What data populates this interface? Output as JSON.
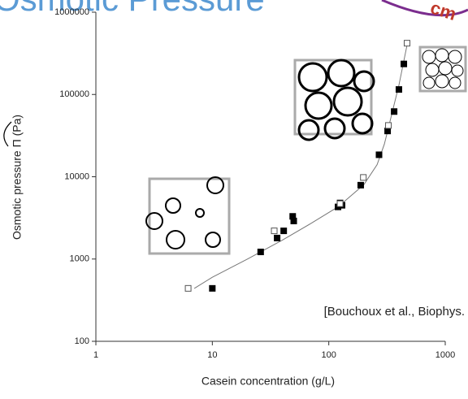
{
  "chart_data": {
    "type": "scatter",
    "title": "Osmotic Pressure",
    "corner_note": "cm",
    "annotation": "[Bouchoux et al., Biophys.",
    "xlabel": "Casein concentration (g/L)",
    "ylabel": "Osmotic pressure Π (Pa)",
    "xscale": "log",
    "yscale": "log",
    "xlim": [
      1,
      1000
    ],
    "ylim": [
      100,
      1000000
    ],
    "xticks": [
      1,
      10,
      100,
      1000
    ],
    "yticks": [
      100,
      1000,
      10000,
      100000,
      1000000
    ],
    "series": [
      {
        "marker": "line",
        "color": "#777777",
        "x": [
          7,
          10,
          20,
          40,
          70,
          120,
          200,
          260,
          300,
          350,
          400,
          470
        ],
        "values": [
          440,
          600,
          1000,
          1700,
          2700,
          4300,
          8000,
          14000,
          25000,
          60000,
          130000,
          400000
        ]
      },
      {
        "marker": "filled-square",
        "color": "#000000",
        "x": [
          10,
          26,
          36,
          41,
          49,
          50,
          120,
          125,
          130,
          188,
          270,
          320,
          364,
          400,
          441
        ],
        "values": [
          440,
          1220,
          1800,
          2200,
          3300,
          2900,
          4300,
          4800,
          4500,
          7900,
          18500,
          36000,
          62000,
          115000,
          235000
        ]
      },
      {
        "marker": "open-square",
        "color": "#555555",
        "x": [
          6.2,
          34,
          125,
          198,
          325,
          470
        ],
        "values": [
          440,
          2200,
          4700,
          9800,
          42000,
          420000
        ]
      }
    ]
  }
}
